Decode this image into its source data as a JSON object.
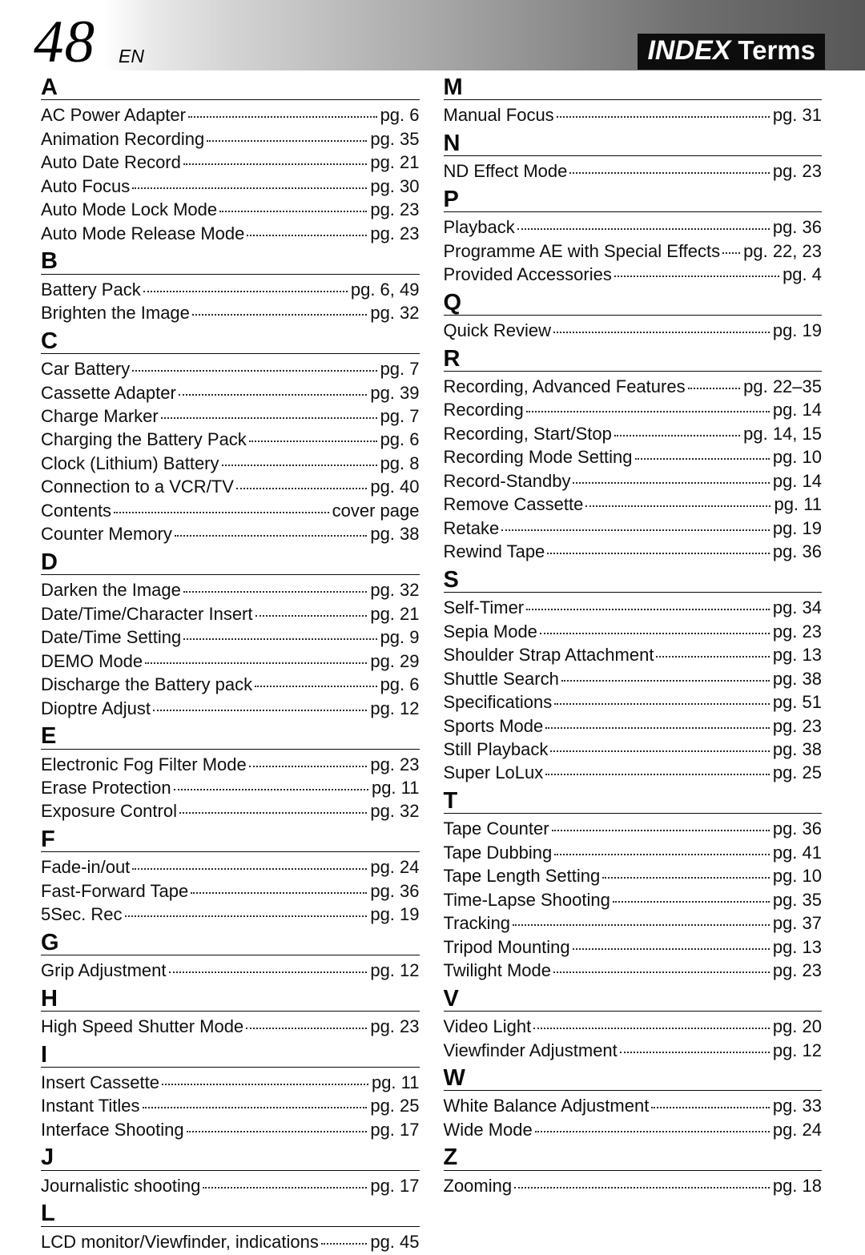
{
  "header": {
    "page_number": "48",
    "lang_code": "EN",
    "index_label": "INDEX",
    "terms_label": "Terms"
  },
  "columns": [
    {
      "sections": [
        {
          "letter": "A",
          "entries": [
            {
              "term": "AC Power Adapter",
              "page": "pg. 6"
            },
            {
              "term": "Animation Recording",
              "page": "pg. 35"
            },
            {
              "term": "Auto Date Record",
              "page": "pg. 21"
            },
            {
              "term": "Auto Focus",
              "page": "pg. 30"
            },
            {
              "term": "Auto Mode Lock Mode",
              "page": "pg. 23"
            },
            {
              "term": "Auto Mode Release Mode",
              "page": "pg. 23"
            }
          ]
        },
        {
          "letter": "B",
          "entries": [
            {
              "term": "Battery Pack",
              "page": "pg. 6, 49"
            },
            {
              "term": "Brighten the Image",
              "page": "pg. 32"
            }
          ]
        },
        {
          "letter": "C",
          "entries": [
            {
              "term": "Car Battery",
              "page": "pg. 7"
            },
            {
              "term": "Cassette Adapter",
              "page": "pg. 39"
            },
            {
              "term": "Charge Marker",
              "page": "pg. 7"
            },
            {
              "term": "Charging the Battery Pack",
              "page": "pg. 6"
            },
            {
              "term": "Clock (Lithium) Battery",
              "page": "pg. 8"
            },
            {
              "term": "Connection to a VCR/TV",
              "page": "pg. 40"
            },
            {
              "term": "Contents",
              "page": "cover page"
            },
            {
              "term": "Counter Memory",
              "page": "pg. 38"
            }
          ]
        },
        {
          "letter": "D",
          "entries": [
            {
              "term": "Darken the Image",
              "page": "pg. 32"
            },
            {
              "term": "Date/Time/Character Insert",
              "page": "pg. 21"
            },
            {
              "term": "Date/Time Setting",
              "page": "pg. 9"
            },
            {
              "term": "DEMO Mode",
              "page": "pg. 29"
            },
            {
              "term": "Discharge the Battery pack",
              "page": "pg. 6"
            },
            {
              "term": "Dioptre Adjust",
              "page": "pg. 12"
            }
          ]
        },
        {
          "letter": "E",
          "entries": [
            {
              "term": "Electronic Fog Filter Mode",
              "page": "pg. 23"
            },
            {
              "term": "Erase Protection",
              "page": "pg. 11"
            },
            {
              "term": "Exposure Control",
              "page": "pg. 32"
            }
          ]
        },
        {
          "letter": "F",
          "entries": [
            {
              "term": "Fade-in/out",
              "page": "pg. 24"
            },
            {
              "term": "Fast-Forward Tape",
              "page": "pg. 36"
            },
            {
              "term": "5Sec. Rec",
              "page": "pg. 19"
            }
          ]
        },
        {
          "letter": "G",
          "entries": [
            {
              "term": "Grip Adjustment",
              "page": "pg. 12"
            }
          ]
        },
        {
          "letter": "H",
          "entries": [
            {
              "term": "High Speed Shutter Mode",
              "page": "pg. 23"
            }
          ]
        },
        {
          "letter": "I",
          "entries": [
            {
              "term": "Insert Cassette",
              "page": "pg. 11"
            },
            {
              "term": "Instant Titles",
              "page": "pg. 25"
            },
            {
              "term": "Interface Shooting",
              "page": "pg. 17"
            }
          ]
        },
        {
          "letter": "J",
          "entries": [
            {
              "term": "Journalistic shooting",
              "page": "pg. 17"
            }
          ]
        },
        {
          "letter": "L",
          "entries": [
            {
              "term": "LCD monitor/Viewfinder, indications",
              "page": "pg. 45"
            }
          ]
        }
      ]
    },
    {
      "sections": [
        {
          "letter": "M",
          "entries": [
            {
              "term": "Manual Focus",
              "page": "pg. 31"
            }
          ]
        },
        {
          "letter": "N",
          "entries": [
            {
              "term": "ND Effect Mode",
              "page": "pg. 23"
            }
          ]
        },
        {
          "letter": "P",
          "entries": [
            {
              "term": "Playback",
              "page": "pg. 36"
            },
            {
              "term": "Programme AE with Special Effects",
              "page": "pg. 22, 23"
            },
            {
              "term": "Provided Accessories",
              "page": "pg. 4"
            }
          ]
        },
        {
          "letter": "Q",
          "entries": [
            {
              "term": "Quick Review",
              "page": "pg. 19"
            }
          ]
        },
        {
          "letter": "R",
          "entries": [
            {
              "term": "Recording, Advanced Features",
              "page": "pg. 22–35"
            },
            {
              "term": "Recording",
              "page": "pg. 14"
            },
            {
              "term": "Recording, Start/Stop",
              "page": "pg. 14, 15"
            },
            {
              "term": "Recording Mode Setting",
              "page": "pg. 10"
            },
            {
              "term": "Record-Standby",
              "page": "pg. 14"
            },
            {
              "term": "Remove Cassette",
              "page": "pg. 11"
            },
            {
              "term": "Retake",
              "page": "pg. 19"
            },
            {
              "term": "Rewind Tape",
              "page": "pg. 36"
            }
          ]
        },
        {
          "letter": "S",
          "entries": [
            {
              "term": "Self-Timer",
              "page": "pg. 34"
            },
            {
              "term": "Sepia Mode",
              "page": "pg. 23"
            },
            {
              "term": "Shoulder Strap Attachment",
              "page": "pg. 13"
            },
            {
              "term": "Shuttle Search",
              "page": "pg. 38"
            },
            {
              "term": "Specifications",
              "page": "pg. 51"
            },
            {
              "term": "Sports Mode",
              "page": "pg. 23"
            },
            {
              "term": "Still Playback",
              "page": "pg. 38"
            },
            {
              "term": "Super LoLux",
              "page": "pg. 25"
            }
          ]
        },
        {
          "letter": "T",
          "entries": [
            {
              "term": "Tape Counter",
              "page": "pg. 36"
            },
            {
              "term": "Tape Dubbing",
              "page": "pg. 41"
            },
            {
              "term": "Tape Length Setting",
              "page": "pg. 10"
            },
            {
              "term": "Time-Lapse Shooting",
              "page": "pg. 35"
            },
            {
              "term": "Tracking",
              "page": "pg. 37"
            },
            {
              "term": "Tripod Mounting",
              "page": "pg. 13"
            },
            {
              "term": "Twilight Mode",
              "page": "pg. 23"
            }
          ]
        },
        {
          "letter": "V",
          "entries": [
            {
              "term": "Video Light",
              "page": "pg. 20"
            },
            {
              "term": "Viewfinder Adjustment",
              "page": "pg. 12"
            }
          ]
        },
        {
          "letter": "W",
          "entries": [
            {
              "term": "White Balance Adjustment",
              "page": "pg. 33"
            },
            {
              "term": "Wide Mode",
              "page": "pg. 24"
            }
          ]
        },
        {
          "letter": "Z",
          "entries": [
            {
              "term": "Zooming",
              "page": "pg. 18"
            }
          ]
        }
      ]
    }
  ]
}
